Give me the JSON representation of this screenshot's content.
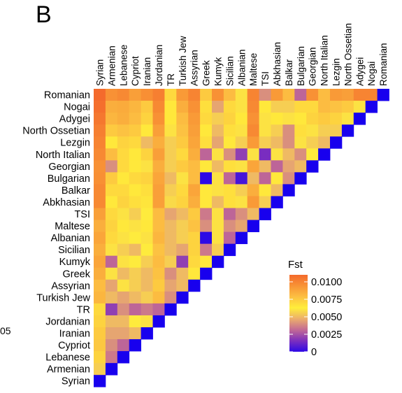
{
  "panel_label": "B",
  "cut_off_text": "05",
  "chart_data": {
    "type": "heatmap",
    "title": "",
    "xlabel": "",
    "ylabel": "",
    "populations": [
      "Syrian",
      "Armenian",
      "Lebanese",
      "Cypriot",
      "Iranian",
      "Jordanian",
      "TR",
      "Turkish Jew",
      "Assyrian",
      "Greek",
      "Kumyk",
      "Sicilian",
      "Albanian",
      "Maltese",
      "TSI",
      "Abkhasian",
      "Balkar",
      "Bulgarian",
      "Georgian",
      "North Italian",
      "Lezgin",
      "North Ossetian",
      "Adygei",
      "Nogai",
      "Romanian"
    ],
    "row_order": [
      "Romanian",
      "Nogai",
      "Adygei",
      "North Ossetian",
      "Lezgin",
      "North Italian",
      "Georgian",
      "Bulgarian",
      "Balkar",
      "Abkhasian",
      "TSI",
      "Maltese",
      "Albanian",
      "Sicilian",
      "Kumyk",
      "Greek",
      "Assyrian",
      "Turkish Jew",
      "TR",
      "Jordanian",
      "Iranian",
      "Cypriot",
      "Lebanese",
      "Armenian",
      "Syrian"
    ],
    "fst_rows": [
      [
        0.011,
        0.0095,
        0.0098,
        0.009,
        0.0096,
        0.0102,
        0.007,
        0.0092,
        0.01,
        0.0075,
        0.0095,
        0.008,
        0.006,
        0.01,
        0.004,
        0.0092,
        0.008,
        0.003,
        0.0095,
        0.008,
        0.0092,
        0.009,
        0.01,
        0.01
      ],
      [
        0.0108,
        0.0085,
        0.0086,
        0.0082,
        0.0075,
        0.0098,
        0.0065,
        0.0085,
        0.0095,
        0.0068,
        0.0045,
        0.007,
        0.006,
        0.0098,
        0.0065,
        0.0055,
        0.0055,
        0.007,
        0.007,
        0.008,
        0.0078,
        0.0075,
        0.006
      ],
      [
        0.0105,
        0.0082,
        0.0085,
        0.008,
        0.0072,
        0.0095,
        0.0065,
        0.008,
        0.0092,
        0.007,
        0.0055,
        0.0072,
        0.0065,
        0.0095,
        0.006,
        0.0065,
        0.006,
        0.0065,
        0.0072,
        0.0075,
        0.0072,
        0.006
      ],
      [
        0.0102,
        0.0075,
        0.0078,
        0.0075,
        0.0065,
        0.009,
        0.006,
        0.0078,
        0.009,
        0.0065,
        0.005,
        0.0068,
        0.006,
        0.0098,
        0.006,
        0.0055,
        0.004,
        0.0068,
        0.006,
        0.0055,
        0.0055
      ],
      [
        0.01,
        0.0065,
        0.0072,
        0.007,
        0.005,
        0.0085,
        0.0055,
        0.0075,
        0.0088,
        0.0068,
        0.0045,
        0.0065,
        0.0055,
        0.0092,
        0.0055,
        0.005,
        0.004,
        0.006,
        0.0055,
        0.005
      ],
      [
        0.0098,
        0.008,
        0.007,
        0.0065,
        0.0072,
        0.009,
        0.0055,
        0.007,
        0.0085,
        0.003,
        0.006,
        0.004,
        0.002,
        0.006,
        0.0015,
        0.006,
        0.005,
        0.004,
        0.0062
      ],
      [
        0.0095,
        0.004,
        0.007,
        0.0065,
        0.006,
        0.0085,
        0.0055,
        0.0075,
        0.008,
        0.0065,
        0.005,
        0.0068,
        0.006,
        0.0088,
        0.005,
        0.003,
        0.0045,
        0.005
      ],
      [
        0.0096,
        0.0075,
        0.0065,
        0.007,
        0.0072,
        0.0088,
        0.005,
        0.006,
        0.008,
        0.0,
        0.006,
        0.003,
        0.0005,
        0.005,
        0.003,
        0.0065,
        0.004
      ],
      [
        0.0098,
        0.007,
        0.007,
        0.0065,
        0.0068,
        0.009,
        0.0055,
        0.007,
        0.0088,
        0.0065,
        0.006,
        0.0068,
        0.0055,
        0.0085,
        0.0065,
        0.005
      ],
      [
        0.0098,
        0.0065,
        0.0072,
        0.0068,
        0.0066,
        0.009,
        0.0058,
        0.0072,
        0.0085,
        0.0065,
        0.005,
        0.0068,
        0.006,
        0.0092,
        0.0055
      ],
      [
        0.009,
        0.007,
        0.006,
        0.0055,
        0.0062,
        0.008,
        0.0045,
        0.005,
        0.0075,
        0.0035,
        0.006,
        0.003,
        0.004,
        0.005
      ],
      [
        0.0085,
        0.0072,
        0.0065,
        0.006,
        0.0065,
        0.008,
        0.005,
        0.0055,
        0.0078,
        0.004,
        0.006,
        0.004,
        0.0045
      ],
      [
        0.0088,
        0.007,
        0.006,
        0.0062,
        0.006,
        0.0082,
        0.005,
        0.0055,
        0.0072,
        0.0,
        0.006,
        0.003
      ],
      [
        0.0085,
        0.006,
        0.0055,
        0.005,
        0.0062,
        0.0078,
        0.005,
        0.0045,
        0.0072,
        0.0035,
        0.0055
      ],
      [
        0.0088,
        0.003,
        0.006,
        0.0062,
        0.0055,
        0.008,
        0.0055,
        0.002,
        0.007,
        0.0065
      ],
      [
        0.0085,
        0.006,
        0.005,
        0.0055,
        0.005,
        0.0078,
        0.004,
        0.005,
        0.0065
      ],
      [
        0.008,
        0.0045,
        0.006,
        0.0055,
        0.005,
        0.0075,
        0.0045,
        0.005
      ],
      [
        0.0082,
        0.005,
        0.0045,
        0.005,
        0.0055,
        0.008,
        0.004
      ],
      [
        0.007,
        0.002,
        0.004,
        0.003,
        0.0035,
        0.003
      ],
      [
        0.0072,
        0.005,
        0.005,
        0.0062,
        0.006
      ],
      [
        0.0075,
        0.0045,
        0.0045,
        0.005
      ],
      [
        0.0076,
        0.004,
        0.003
      ],
      [
        0.0072,
        0.0035
      ],
      [
        0.0055
      ],
      []
    ],
    "diagonal_color": "#1800ee",
    "legend": {
      "title": "Fst",
      "position": "right",
      "range": [
        0,
        0.011
      ],
      "ticks": [
        "0.0100",
        "0.0075",
        "0.0050",
        "0.0025",
        "0"
      ],
      "tick_values": [
        0.01,
        0.0075,
        0.005,
        0.0025,
        0
      ],
      "colors": [
        "#2d09e6",
        "#7d2fbe",
        "#c36a94",
        "#ecae6c",
        "#ffee3a",
        "#fcc042",
        "#f89335",
        "#f46a2c"
      ]
    }
  }
}
